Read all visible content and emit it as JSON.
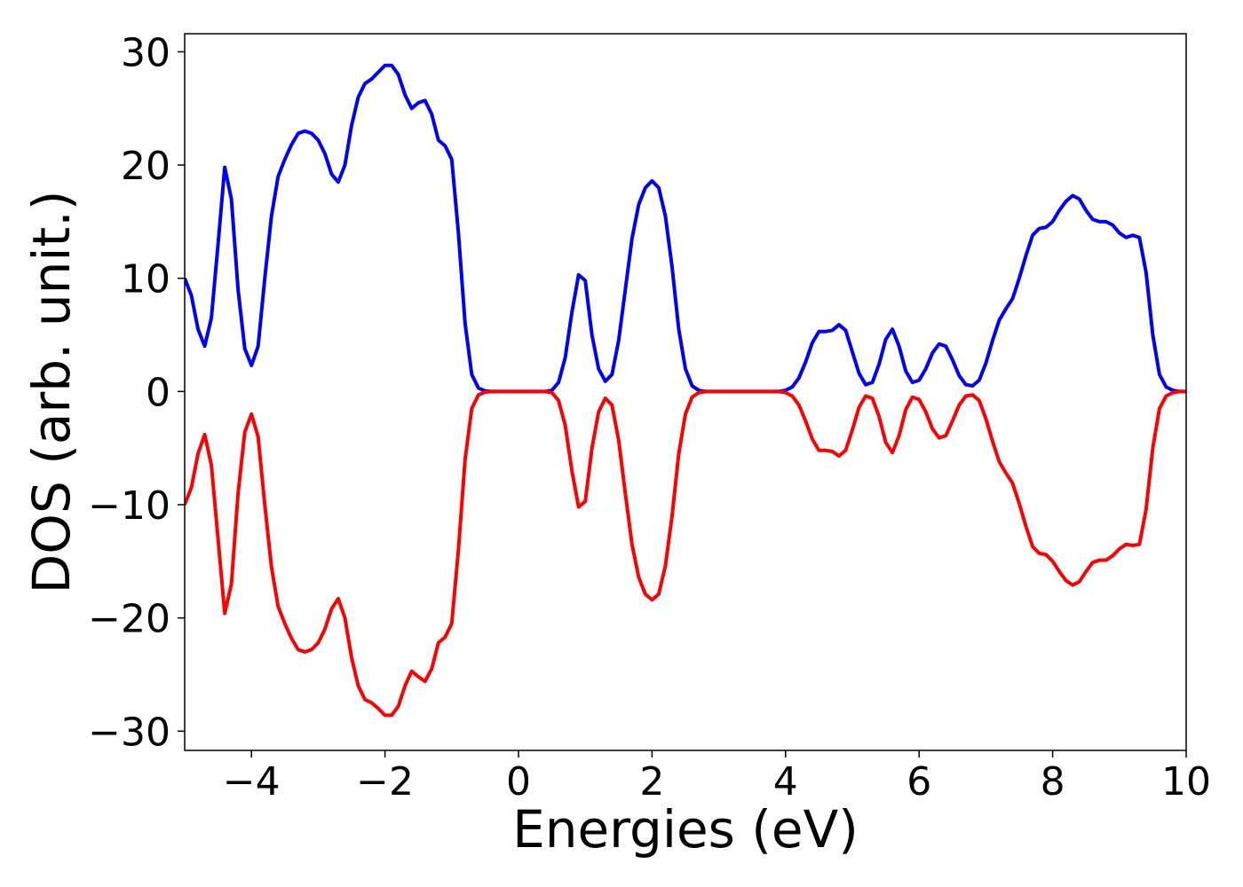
{
  "chart_data": {
    "type": "line",
    "xlabel": "Energies (eV)",
    "ylabel": "DOS (arb. unit.)",
    "x": [
      -5,
      -4.9,
      -4.8,
      -4.7,
      -4.6,
      -4.5,
      -4.4,
      -4.3,
      -4.2,
      -4.1,
      -4,
      -3.9,
      -3.8,
      -3.7,
      -3.6,
      -3.5,
      -3.4,
      -3.3,
      -3.2,
      -3.1,
      -3,
      -2.9,
      -2.8,
      -2.7,
      -2.6,
      -2.5,
      -2.4,
      -2.3,
      -2.2,
      -2.1,
      -2,
      -1.9,
      -1.8,
      -1.7,
      -1.6,
      -1.5,
      -1.4,
      -1.3,
      -1.2,
      -1.1,
      -1,
      -0.9,
      -0.8,
      -0.7,
      -0.6,
      -0.5,
      -0.4,
      -0.3,
      -0.2,
      -0.1,
      0,
      0.1,
      0.2,
      0.3,
      0.4,
      0.5,
      0.6,
      0.7,
      0.8,
      0.9,
      1,
      1.1,
      1.2,
      1.3,
      1.4,
      1.5,
      1.6,
      1.7,
      1.8,
      1.9,
      2,
      2.1,
      2.2,
      2.3,
      2.4,
      2.5,
      2.6,
      2.7,
      2.8,
      2.9,
      3,
      3.1,
      3.2,
      3.3,
      3.4,
      3.5,
      3.6,
      3.7,
      3.8,
      3.9,
      4,
      4.1,
      4.2,
      4.3,
      4.4,
      4.5,
      4.6,
      4.7,
      4.8,
      4.9,
      5,
      5.1,
      5.2,
      5.3,
      5.4,
      5.5,
      5.6,
      5.7,
      5.8,
      5.9,
      6,
      6.1,
      6.2,
      6.3,
      6.4,
      6.5,
      6.6,
      6.7,
      6.8,
      6.9,
      7,
      7.1,
      7.2,
      7.3,
      7.4,
      7.5,
      7.6,
      7.7,
      7.8,
      7.9,
      8,
      8.1,
      8.2,
      8.3,
      8.4,
      8.5,
      8.6,
      8.7,
      8.8,
      8.9,
      9,
      9.1,
      9.2,
      9.3,
      9.4,
      9.5,
      9.6,
      9.7,
      9.8,
      9.9,
      10
    ],
    "series": [
      {
        "color": "#0000ff",
        "values": [
          10,
          8.5,
          5.5,
          4,
          6.5,
          13,
          19.8,
          17,
          9,
          3.8,
          2.3,
          4,
          10,
          15.5,
          19,
          20.5,
          21.8,
          22.8,
          23,
          22.8,
          22.2,
          21,
          19.2,
          18.5,
          20,
          23.5,
          26,
          27.2,
          27.6,
          28.2,
          28.8,
          28.8,
          28,
          26.2,
          25,
          25.5,
          25.7,
          24.5,
          22.2,
          21.7,
          20.5,
          14,
          6,
          1.5,
          0.3,
          0.05,
          0,
          0,
          0,
          0,
          0,
          0,
          0,
          0,
          0,
          0.1,
          0.8,
          3,
          7,
          10.3,
          9.8,
          5,
          2,
          0.9,
          1.5,
          4.5,
          9,
          13.5,
          16.5,
          18,
          18.6,
          18,
          15.5,
          11,
          5.5,
          2,
          0.5,
          0.1,
          0,
          0,
          0,
          0,
          0,
          0,
          0,
          0,
          0,
          0,
          0,
          0,
          0.1,
          0.4,
          1.2,
          2.6,
          4.3,
          5.3,
          5.3,
          5.4,
          5.9,
          5.4,
          3.5,
          1.6,
          0.6,
          0.8,
          2.4,
          4.6,
          5.5,
          4,
          1.8,
          0.8,
          1,
          2,
          3.4,
          4.2,
          4,
          2.8,
          1.4,
          0.6,
          0.5,
          1,
          2.5,
          4.5,
          6.3,
          7.3,
          8.2,
          10,
          12,
          13.8,
          14.4,
          14.5,
          15,
          16,
          16.8,
          17.3,
          17,
          16,
          15.2,
          15,
          15,
          14.7,
          14,
          13.6,
          13.8,
          13.6,
          10.5,
          5,
          1.5,
          0.4,
          0.1,
          0,
          0
        ]
      },
      {
        "color": "#ff0000",
        "values": [
          -10,
          -8.5,
          -5.5,
          -3.8,
          -6.5,
          -13,
          -19.6,
          -17,
          -9,
          -3.6,
          -2,
          -4,
          -10,
          -15.5,
          -19,
          -20.5,
          -21.8,
          -22.8,
          -23,
          -22.8,
          -22.2,
          -21,
          -19.2,
          -18.3,
          -20,
          -23.5,
          -26,
          -27.2,
          -27.5,
          -28,
          -28.6,
          -28.6,
          -27.8,
          -26,
          -24.7,
          -25.2,
          -25.6,
          -24.5,
          -22.2,
          -21.7,
          -20.5,
          -14,
          -6,
          -1.5,
          -0.3,
          -0.05,
          0,
          0,
          0,
          0,
          0,
          0,
          0,
          0,
          0,
          -0.1,
          -0.8,
          -3,
          -7,
          -10.2,
          -9.7,
          -5,
          -1.8,
          -0.6,
          -1.2,
          -4.3,
          -9,
          -13.5,
          -16.4,
          -17.9,
          -18.4,
          -17.9,
          -15.4,
          -11,
          -5.5,
          -2,
          -0.5,
          -0.1,
          0,
          0,
          0,
          0,
          0,
          0,
          0,
          0,
          0,
          0,
          0,
          0,
          -0.1,
          -0.4,
          -1.2,
          -2.6,
          -4.2,
          -5.2,
          -5.2,
          -5.3,
          -5.7,
          -5.2,
          -3.4,
          -1.4,
          -0.4,
          -0.6,
          -2.2,
          -4.5,
          -5.4,
          -3.9,
          -1.6,
          -0.5,
          -0.7,
          -1.8,
          -3.3,
          -4.1,
          -3.9,
          -2.6,
          -1.2,
          -0.4,
          -0.3,
          -0.8,
          -2.4,
          -4.4,
          -6.2,
          -7.2,
          -8.1,
          -9.9,
          -11.9,
          -13.7,
          -14.3,
          -14.4,
          -15,
          -15.9,
          -16.7,
          -17.1,
          -16.8,
          -15.9,
          -15.1,
          -14.9,
          -14.9,
          -14.5,
          -13.9,
          -13.5,
          -13.6,
          -13.5,
          -10.4,
          -5,
          -1.5,
          -0.4,
          -0.1,
          0,
          0
        ]
      }
    ],
    "xlim": [
      -5,
      10
    ],
    "xticks": [
      {
        "value": -4,
        "label": "−4"
      },
      {
        "value": -2,
        "label": "−2"
      },
      0,
      2,
      4,
      6,
      8,
      10
    ],
    "ylim": [
      -31.7,
      31.6
    ],
    "yticks": [
      {
        "value": -30,
        "label": "−30"
      },
      {
        "value": -20,
        "label": "−20"
      },
      {
        "value": -10,
        "label": "−10"
      },
      0,
      10,
      20,
      30
    ],
    "grid": false
  }
}
